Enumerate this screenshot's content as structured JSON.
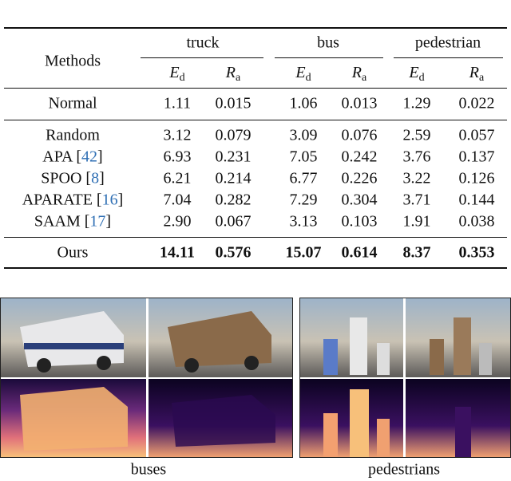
{
  "table": {
    "header": {
      "methods": "Methods",
      "groups": [
        "truck",
        "bus",
        "pedestrian"
      ],
      "metrics": [
        {
          "symbol": "E",
          "sub": "d"
        },
        {
          "symbol": "R",
          "sub": "a"
        }
      ]
    },
    "baseline": {
      "name": "Normal",
      "values": [
        "1.11",
        "0.015",
        "1.06",
        "0.013",
        "1.29",
        "0.022"
      ]
    },
    "rows": [
      {
        "name": "Random",
        "values": [
          "3.12",
          "0.079",
          "3.09",
          "0.076",
          "2.59",
          "0.057"
        ]
      },
      {
        "name": "APA",
        "ref": "[42]",
        "values": [
          "6.93",
          "0.231",
          "7.05",
          "0.242",
          "3.76",
          "0.137"
        ]
      },
      {
        "name": "SPOO",
        "ref": "[8]",
        "values": [
          "6.21",
          "0.214",
          "6.77",
          "0.226",
          "3.22",
          "0.126"
        ]
      },
      {
        "name": "APARATE",
        "ref": "[16]",
        "values": [
          "7.04",
          "0.282",
          "7.29",
          "0.304",
          "3.71",
          "0.144"
        ]
      },
      {
        "name": "SAAM",
        "ref": "[17]",
        "values": [
          "2.90",
          "0.067",
          "3.13",
          "0.103",
          "1.91",
          "0.038"
        ]
      }
    ],
    "ours": {
      "name": "Ours",
      "values": [
        "14.11",
        "0.576",
        "15.07",
        "0.614",
        "8.37",
        "0.353"
      ]
    }
  },
  "figure": {
    "captions": [
      "buses",
      "pedestrians"
    ]
  }
}
